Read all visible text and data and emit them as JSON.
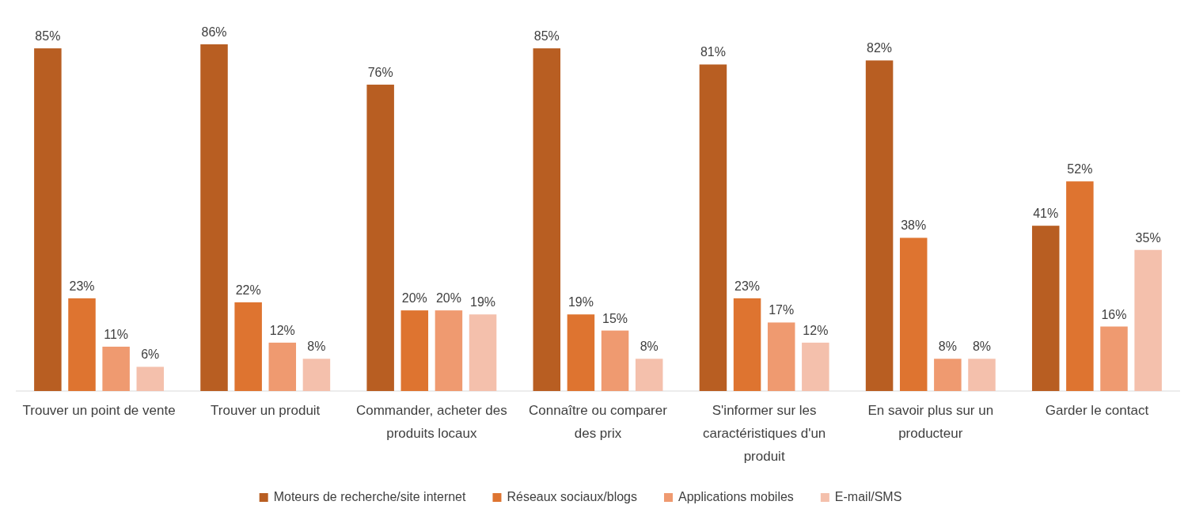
{
  "chart_data": {
    "type": "bar",
    "categories": [
      "Trouver un point de vente",
      "Trouver un produit",
      "Commander, acheter des produits locaux",
      "Connaître ou comparer des prix",
      "S'informer sur les caractéristiques d'un produit",
      "En savoir plus sur un producteur",
      "Garder le contact"
    ],
    "series": [
      {
        "name": "Moteurs de recherche/site internet",
        "color": "#b85e22",
        "values": [
          85,
          86,
          76,
          85,
          81,
          82,
          41
        ],
        "value_labels": [
          "85%",
          "86%",
          "76%",
          "85%",
          "81%",
          "82%",
          "41%"
        ]
      },
      {
        "name": "Réseaux sociaux/blogs",
        "color": "#de7430",
        "values": [
          23,
          22,
          20,
          19,
          23,
          38,
          52
        ],
        "value_labels": [
          "23%",
          "22%",
          "20%",
          "19%",
          "23%",
          "38%",
          "52%"
        ]
      },
      {
        "name": "Applications mobiles",
        "color": "#ef9a70",
        "values": [
          11,
          12,
          20,
          15,
          17,
          8,
          16
        ],
        "value_labels": [
          "11%",
          "12%",
          "20%",
          "15%",
          "17%",
          "8%",
          "16%"
        ]
      },
      {
        "name": "E-mail/SMS",
        "color": "#f4c0ac",
        "values": [
          6,
          8,
          19,
          8,
          12,
          8,
          35
        ],
        "value_labels": [
          "6%",
          "8%",
          "19%",
          "8%",
          "12%",
          "8%",
          "35%"
        ]
      }
    ],
    "legend": "bottom"
  }
}
